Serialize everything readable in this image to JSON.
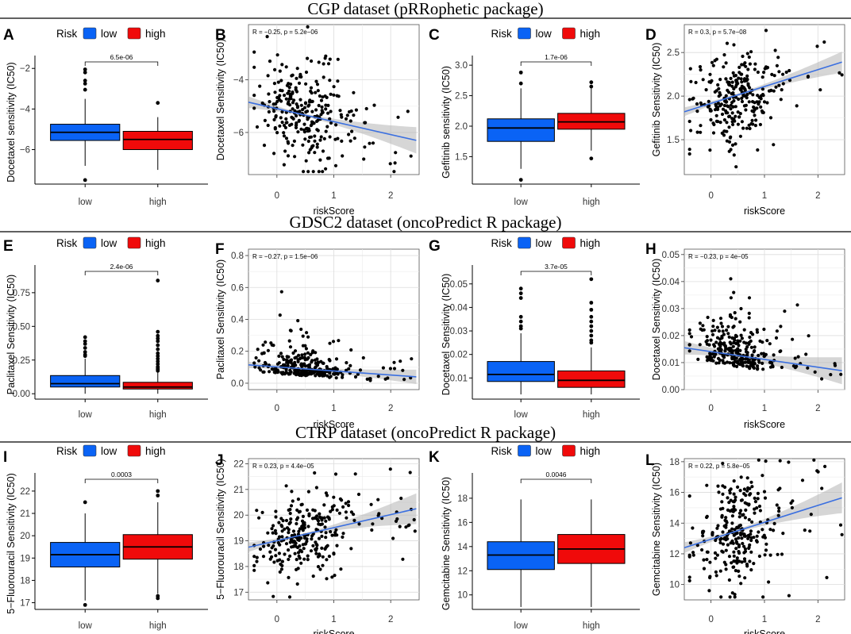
{
  "colors": {
    "low": "#0a63f5",
    "high": "#f00a0a",
    "fit": "#3a6fe0",
    "band": "#b5b5b5"
  },
  "sections": [
    {
      "title": "CGP dataset (pRRophetic package)"
    },
    {
      "title": "GDSC2 dataset (oncoPredict R package)"
    },
    {
      "title": "CTRP dataset (oncoPredict R package)"
    }
  ],
  "legend": {
    "title": "Risk",
    "low_label": "low",
    "high_label": "high"
  },
  "chart_data": [
    {
      "panel": "A",
      "type": "box",
      "ylabel": "Docetaxel sensitivity (IC50)",
      "categories": [
        "low",
        "high"
      ],
      "ylim": [
        -7.7,
        -1.6
      ],
      "yticks": [
        -6,
        -4,
        -2
      ],
      "pvalue": "6.5e-06",
      "boxes": [
        {
          "q1": -5.55,
          "median": -5.15,
          "q3": -4.75,
          "lo": -6.8,
          "hi": -3.5,
          "outliers": [
            -2.05,
            -2.2,
            -2.6,
            -2.75,
            -3.05,
            -7.5
          ]
        },
        {
          "q1": -6.0,
          "median": -5.5,
          "q3": -5.1,
          "lo": -7.0,
          "hi": -4.4,
          "outliers": [
            -3.7
          ]
        }
      ]
    },
    {
      "panel": "B",
      "type": "scatter",
      "ylabel": "Docetaxel Sensitivity (IC50)",
      "xlabel": "riskScore",
      "xlim": [
        -0.5,
        2.5
      ],
      "ylim": [
        -7.6,
        -1.9
      ],
      "xticks": [
        0,
        1,
        2
      ],
      "yticks": [
        -6,
        -4
      ],
      "stat": "R = −0.25, p = 5.2e−06",
      "fit": {
        "x": [
          -0.5,
          2.45
        ],
        "y": [
          -4.85,
          -6.3
        ]
      },
      "band": [
        0.22,
        0.05,
        0.5
      ],
      "seed": 11,
      "n": 280,
      "cx": 0.45,
      "sx": 0.38,
      "noise": 0.9
    },
    {
      "panel": "C",
      "type": "box",
      "ylabel": "Gefitinib sensitivity (IC50)",
      "categories": [
        "low",
        "high"
      ],
      "ylim": [
        1.05,
        3.08
      ],
      "yticks": [
        1.5,
        2.0,
        2.5,
        3.0
      ],
      "pvalue": "1.7e-06",
      "boxes": [
        {
          "q1": 1.75,
          "median": 1.97,
          "q3": 2.12,
          "lo": 1.3,
          "hi": 2.62,
          "outliers": [
            2.88,
            2.7,
            1.12
          ]
        },
        {
          "q1": 1.95,
          "median": 2.07,
          "q3": 2.21,
          "lo": 1.6,
          "hi": 2.62,
          "outliers": [
            2.72,
            2.65,
            1.47
          ]
        }
      ]
    },
    {
      "panel": "D",
      "type": "scatter",
      "ylabel": "Gefitinib Sensitivity (IC50)",
      "xlabel": "riskScore",
      "xlim": [
        -0.5,
        2.5
      ],
      "ylim": [
        1.1,
        2.82
      ],
      "xticks": [
        0,
        1,
        2
      ],
      "yticks": [
        1.5,
        2.0,
        2.5
      ],
      "stat": "R = 0.3, p = 5.7e−08",
      "fit": {
        "x": [
          -0.5,
          2.45
        ],
        "y": [
          1.82,
          2.39
        ]
      },
      "band": [
        0.05,
        0.015,
        0.12
      ],
      "seed": 23,
      "n": 280,
      "cx": 0.45,
      "sx": 0.38,
      "noise": 0.25
    },
    {
      "panel": "E",
      "type": "box",
      "ylabel": "Paclitaxel Sensitivity (IC50)",
      "categories": [
        "low",
        "high"
      ],
      "ylim": [
        -0.04,
        0.92
      ],
      "yticks": [
        0.0,
        0.25,
        0.5,
        0.75
      ],
      "pvalue": "2.4e-06",
      "boxes": [
        {
          "q1": 0.05,
          "median": 0.075,
          "q3": 0.135,
          "lo": 0.0,
          "hi": 0.26,
          "outliers": [
            0.42,
            0.39,
            0.37,
            0.34,
            0.31,
            0.29,
            0.28
          ]
        },
        {
          "q1": 0.035,
          "median": 0.05,
          "q3": 0.085,
          "lo": 0.0,
          "hi": 0.16,
          "outliers": [
            0.84,
            0.46,
            0.43,
            0.41,
            0.39,
            0.36,
            0.33,
            0.3,
            0.28,
            0.26,
            0.24,
            0.22,
            0.2,
            0.19,
            0.18,
            0.17
          ]
        }
      ]
    },
    {
      "panel": "F",
      "type": "scatter",
      "ylabel": "Paclitaxel Sensitivity (IC50)",
      "xlabel": "riskScore",
      "xlim": [
        -0.5,
        2.5
      ],
      "ylim": [
        -0.04,
        0.84
      ],
      "xticks": [
        0,
        1,
        2
      ],
      "yticks": [
        0.0,
        0.2,
        0.4,
        0.6,
        0.8
      ],
      "stat": "R = −0.27, p = 1.5e−06",
      "fit": {
        "x": [
          -0.5,
          2.45
        ],
        "y": [
          0.115,
          0.04
        ]
      },
      "band": [
        0.02,
        0.01,
        0.045
      ],
      "seed": 37,
      "n": 280,
      "cx": 0.45,
      "sx": 0.38,
      "noise": 0.08,
      "skew": true
    },
    {
      "panel": "G",
      "type": "box",
      "ylabel": "Docetaxel Sensitivity (IC50)",
      "categories": [
        "low",
        "high"
      ],
      "ylim": [
        0.001,
        0.056
      ],
      "yticks": [
        0.01,
        0.02,
        0.03,
        0.04,
        0.05
      ],
      "pvalue": "3.7e-05",
      "boxes": [
        {
          "q1": 0.0085,
          "median": 0.0115,
          "q3": 0.017,
          "lo": 0.003,
          "hi": 0.029,
          "outliers": [
            0.048,
            0.046,
            0.044,
            0.036,
            0.034,
            0.032,
            0.031
          ]
        },
        {
          "q1": 0.006,
          "median": 0.009,
          "q3": 0.013,
          "lo": 0.003,
          "hi": 0.023,
          "outliers": [
            0.052,
            0.042,
            0.039,
            0.036,
            0.034,
            0.032,
            0.03,
            0.028,
            0.026,
            0.025
          ]
        }
      ]
    },
    {
      "panel": "H",
      "type": "scatter",
      "ylabel": "Docetaxel Sensitivity (IC50)",
      "xlabel": "riskScore",
      "xlim": [
        -0.5,
        2.5
      ],
      "ylim": [
        0.0,
        0.052
      ],
      "xticks": [
        0,
        1,
        2
      ],
      "yticks": [
        0.0,
        0.01,
        0.02,
        0.03,
        0.04,
        0.05
      ],
      "stat": "R = −0.23, p = 4e−05",
      "fit": {
        "x": [
          -0.5,
          2.45
        ],
        "y": [
          0.0155,
          0.007
        ]
      },
      "band": [
        0.0025,
        0.001,
        0.005
      ],
      "seed": 53,
      "n": 280,
      "cx": 0.45,
      "sx": 0.38,
      "noise": 0.0075,
      "skew": true
    },
    {
      "panel": "I",
      "type": "box",
      "ylabel": "5−Fluorouracil Sensitivity (IC50)",
      "categories": [
        "low",
        "high"
      ],
      "ylim": [
        16.7,
        22.6
      ],
      "yticks": [
        17,
        18,
        19,
        20,
        21,
        22
      ],
      "pvalue": "0.0003",
      "boxes": [
        {
          "q1": 18.6,
          "median": 19.15,
          "q3": 19.7,
          "lo": 17.1,
          "hi": 21.0,
          "outliers": [
            21.5,
            16.9
          ]
        },
        {
          "q1": 18.95,
          "median": 19.5,
          "q3": 20.05,
          "lo": 17.4,
          "hi": 21.5,
          "outliers": [
            22.0,
            21.8,
            17.3,
            17.2
          ]
        }
      ]
    },
    {
      "panel": "J",
      "type": "scatter",
      "ylabel": "5−Fluorouracil Sensitivity (IC50)",
      "xlabel": "riskScore",
      "xlim": [
        -0.5,
        2.5
      ],
      "ylim": [
        16.7,
        22.2
      ],
      "xticks": [
        0,
        1,
        2
      ],
      "yticks": [
        17,
        18,
        19,
        20,
        21,
        22
      ],
      "stat": "R = 0.23, p = 4.4e−05",
      "fit": {
        "x": [
          -0.5,
          2.45
        ],
        "y": [
          18.75,
          20.25
        ]
      },
      "band": [
        0.18,
        0.05,
        0.6
      ],
      "seed": 71,
      "n": 280,
      "cx": 0.45,
      "sx": 0.38,
      "noise": 0.85
    },
    {
      "panel": "K",
      "type": "box",
      "ylabel": "Gemcitabine Sensitivity (IC50)",
      "categories": [
        "low",
        "high"
      ],
      "ylim": [
        8.8,
        19.7
      ],
      "yticks": [
        10,
        12,
        14,
        16,
        18
      ],
      "pvalue": "0.0046",
      "boxes": [
        {
          "q1": 12.1,
          "median": 13.3,
          "q3": 14.4,
          "lo": 9.0,
          "hi": 17.9,
          "outliers": []
        },
        {
          "q1": 12.6,
          "median": 13.8,
          "q3": 15.0,
          "lo": 9.0,
          "hi": 17.9,
          "outliers": []
        }
      ]
    },
    {
      "panel": "L",
      "type": "scatter",
      "ylabel": "Gemcitabine Sensitivity (IC50)",
      "xlabel": "riskScore",
      "xlim": [
        -0.5,
        2.5
      ],
      "ylim": [
        9.0,
        18.2
      ],
      "xticks": [
        0,
        1,
        2
      ],
      "yticks": [
        10,
        12,
        14,
        16,
        18
      ],
      "stat": "R = 0.22, p = 5.8e−05",
      "fit": {
        "x": [
          -0.5,
          2.45
        ],
        "y": [
          12.4,
          15.65
        ]
      },
      "band": [
        0.35,
        0.1,
        1.0
      ],
      "seed": 89,
      "n": 280,
      "cx": 0.45,
      "sx": 0.38,
      "noise": 1.7
    }
  ]
}
